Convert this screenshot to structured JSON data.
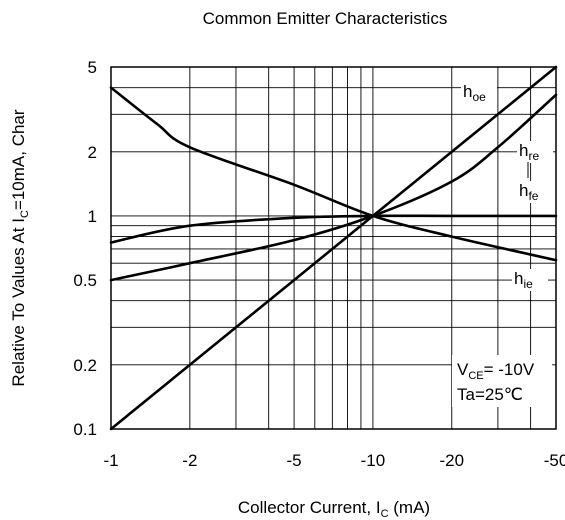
{
  "chart_data": {
    "type": "line",
    "title": "Common Emitter Characteristics",
    "xlabel": {
      "main": "Collector Current, I",
      "sub": "C",
      "suffix": " (mA)"
    },
    "ylabel": {
      "main": "Relative To Values At I",
      "sub": "C",
      "suffix": "=10mA, Char"
    },
    "x_scale": "log",
    "y_scale": "log",
    "x_direction": "negative values, magnitude on log scale",
    "xlim": [
      -1,
      -50
    ],
    "ylim": [
      0.1,
      5
    ],
    "x_ticks": [
      -1,
      -2,
      -5,
      -10,
      -20,
      -50
    ],
    "x_tick_labels": [
      "-1",
      "-2",
      "-5",
      "-10",
      "-20",
      "-50"
    ],
    "y_ticks": [
      0.1,
      0.2,
      0.5,
      1,
      2,
      5
    ],
    "y_tick_labels": [
      "0.1",
      "0.2",
      "0.5",
      "1",
      "2",
      "5"
    ],
    "grid": true,
    "series": [
      {
        "name": "h_oe",
        "label": {
          "main": "h",
          "sub": "oe"
        },
        "x": [
          -1,
          -2,
          -5,
          -10,
          -20,
          -50
        ],
        "y": [
          0.1,
          0.2,
          0.5,
          1,
          2,
          5
        ]
      },
      {
        "name": "h_re",
        "label": {
          "main": "h",
          "sub": "re"
        },
        "x": [
          -1,
          -2,
          -5,
          -10,
          -20,
          -30,
          -50
        ],
        "y": [
          0.5,
          0.6,
          0.77,
          1,
          1.45,
          2.1,
          3.7
        ]
      },
      {
        "name": "h_fe",
        "label": {
          "main": "h",
          "sub": "fe"
        },
        "x": [
          -1,
          -2,
          -5,
          -10,
          -20,
          -50
        ],
        "y": [
          0.75,
          0.9,
          0.98,
          1.0,
          1.0,
          1.0
        ]
      },
      {
        "name": "h_ie",
        "label": {
          "main": "h",
          "sub": "ie"
        },
        "x": [
          -1,
          -1.5,
          -2,
          -5,
          -10,
          -20,
          -50
        ],
        "y": [
          4.0,
          2.7,
          2.1,
          1.4,
          1.0,
          0.8,
          0.62
        ]
      }
    ],
    "annotations": [
      {
        "main": "V",
        "sub": "CE",
        "suffix": "= -10V"
      },
      {
        "main": "Ta=25℃"
      }
    ]
  }
}
